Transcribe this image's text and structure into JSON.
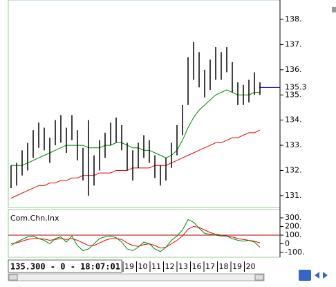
{
  "price_panel": {
    "ylim": [
      130.53,
      138.77
    ],
    "yticks": [
      {
        "value": 131,
        "label": "131."
      },
      {
        "value": 132,
        "label": "132."
      },
      {
        "value": 133,
        "label": "133."
      },
      {
        "value": 134,
        "label": "134."
      },
      {
        "value": 135,
        "label": "135."
      },
      {
        "value": 136,
        "label": "136."
      },
      {
        "value": 137,
        "label": "137."
      },
      {
        "value": 138,
        "label": "138."
      }
    ],
    "last": {
      "value": 135.3,
      "label": "135.3"
    },
    "high": [
      132.2,
      132.3,
      132.8,
      133.1,
      133.6,
      133.9,
      133.7,
      133.3,
      134.0,
      134.2,
      133.7,
      134.2,
      133.6,
      132.9,
      134.0,
      132.6,
      133.2,
      133.5,
      133.9,
      134.1,
      133.8,
      133.1,
      132.8,
      133.1,
      133.4,
      133.2,
      132.6,
      132.2,
      132.5,
      133.1,
      133.8,
      134.6,
      136.5,
      137.1,
      136.7,
      136.0,
      136.4,
      136.9,
      136.7,
      136.9,
      136.3,
      135.5,
      135.4,
      135.6,
      135.9,
      135.5
    ],
    "low": [
      131.3,
      131.4,
      131.8,
      132.0,
      132.5,
      132.9,
      132.8,
      132.3,
      133.0,
      133.1,
      132.7,
      133.2,
      132.4,
      131.6,
      131.0,
      131.4,
      132.0,
      132.5,
      133.0,
      133.1,
      132.8,
      132.0,
      131.6,
      132.1,
      132.5,
      132.3,
      131.7,
      131.4,
      131.6,
      132.1,
      132.6,
      133.4,
      134.6,
      135.6,
      135.3,
      134.9,
      135.2,
      135.6,
      135.6,
      135.9,
      135.1,
      134.6,
      134.6,
      134.7,
      135.0,
      135.0
    ],
    "ma_fast": [
      132.2,
      132.2,
      132.2,
      132.3,
      132.4,
      132.5,
      132.6,
      132.7,
      132.8,
      132.9,
      133.0,
      133.0,
      133.0,
      133.0,
      132.9,
      132.9,
      132.9,
      133.0,
      133.0,
      133.1,
      133.1,
      133.0,
      132.9,
      132.9,
      132.8,
      132.8,
      132.7,
      132.6,
      132.5,
      132.6,
      132.8,
      133.2,
      133.7,
      134.1,
      134.4,
      134.6,
      134.8,
      135.0,
      135.1,
      135.2,
      135.1,
      135.0,
      135.0,
      135.0,
      135.1,
      135.1
    ],
    "ma_slow": [
      130.9,
      131.0,
      131.1,
      131.2,
      131.3,
      131.4,
      131.4,
      131.5,
      131.5,
      131.6,
      131.6,
      131.7,
      131.7,
      131.8,
      131.8,
      131.8,
      131.9,
      131.9,
      131.9,
      132.0,
      132.0,
      132.0,
      132.1,
      132.1,
      132.1,
      132.1,
      132.2,
      132.2,
      132.2,
      132.3,
      132.4,
      132.5,
      132.6,
      132.7,
      132.8,
      132.9,
      133.0,
      133.1,
      133.1,
      133.2,
      133.3,
      133.3,
      133.4,
      133.5,
      133.5,
      133.6
    ]
  },
  "indicator_panel": {
    "title": "Com.Chn.Inx",
    "ylim": [
      -156,
      396
    ],
    "yticks": [
      {
        "value": 300,
        "label": "300."
      },
      {
        "value": 200,
        "label": "200."
      },
      {
        "value": 100,
        "label": "100."
      },
      0,
      {
        "value": -100,
        "label": "-100."
      }
    ],
    "level": 100,
    "cci": [
      -20,
      20,
      50,
      80,
      90,
      60,
      40,
      0,
      60,
      80,
      20,
      90,
      -20,
      -80,
      -60,
      0,
      60,
      80,
      90,
      70,
      20,
      -60,
      -80,
      -40,
      20,
      0,
      -60,
      -90,
      -40,
      40,
      90,
      160,
      280,
      250,
      180,
      120,
      110,
      100,
      90,
      90,
      60,
      40,
      30,
      40,
      20,
      -40
    ],
    "signal": [
      0,
      10,
      30,
      50,
      60,
      60,
      55,
      40,
      50,
      60,
      50,
      60,
      40,
      10,
      -20,
      -20,
      10,
      40,
      60,
      60,
      50,
      10,
      -20,
      -30,
      -10,
      0,
      -20,
      -50,
      -40,
      0,
      40,
      90,
      170,
      200,
      190,
      160,
      130,
      110,
      100,
      90,
      80,
      60,
      50,
      40,
      30,
      10
    ]
  },
  "status": "135.300 - 0 - 18:07:01",
  "dates": [
    "19",
    "10",
    "11",
    "12",
    "13",
    "16",
    "17",
    "18",
    "19",
    "20"
  ]
}
